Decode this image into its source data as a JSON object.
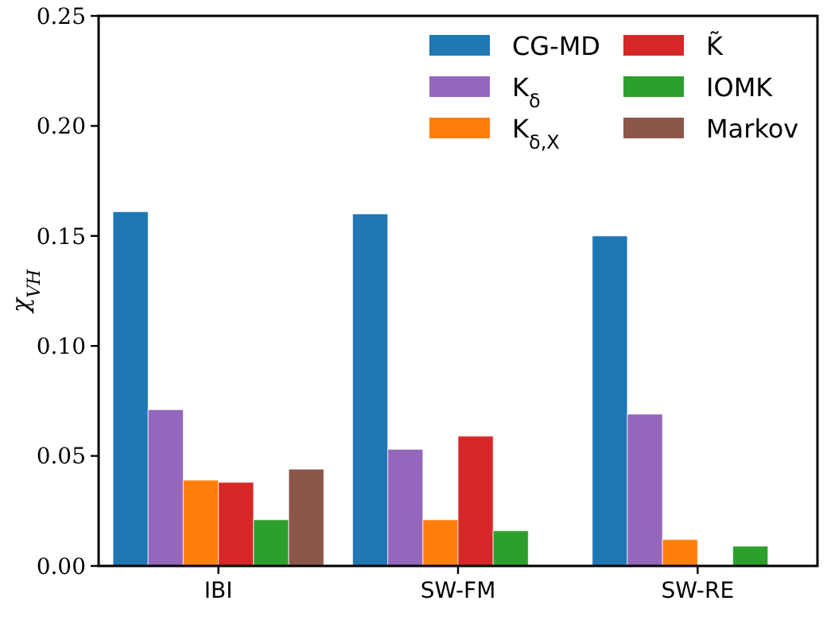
{
  "chart_data": {
    "type": "bar",
    "ylabel": "χ$_{VH}$",
    "categories": [
      "IBI",
      "SW-FM",
      "SW-RE"
    ],
    "series": [
      {
        "name": "CG-MD",
        "color": "#1f77b4",
        "values": [
          0.161,
          0.16,
          0.15
        ]
      },
      {
        "name": "K$_{δ}$",
        "color": "#9467bd",
        "values": [
          0.071,
          0.053,
          0.069
        ]
      },
      {
        "name": "K$_{δ,X}$",
        "color": "#ff7f0e",
        "values": [
          0.039,
          0.021,
          0.012
        ]
      },
      {
        "name": "K̃",
        "color": "#d62728",
        "values": [
          0.038,
          0.059,
          null
        ]
      },
      {
        "name": "IOMK",
        "color": "#2ca02c",
        "values": [
          0.021,
          0.016,
          0.009
        ]
      },
      {
        "name": "Markov",
        "color": "#8c564b",
        "values": [
          0.044,
          null,
          null
        ]
      }
    ],
    "ylim": [
      0,
      0.25
    ],
    "yticks": [
      {
        "value": 0,
        "label": "0.00"
      },
      {
        "value": 0.05,
        "label": "0.05"
      },
      {
        "value": 0.1,
        "label": "0.10"
      },
      {
        "value": 0.15,
        "label": "0.15"
      },
      {
        "value": 0.2,
        "label": "0.20"
      },
      {
        "value": 0.25,
        "label": "0.25"
      }
    ],
    "legend": "top right"
  }
}
